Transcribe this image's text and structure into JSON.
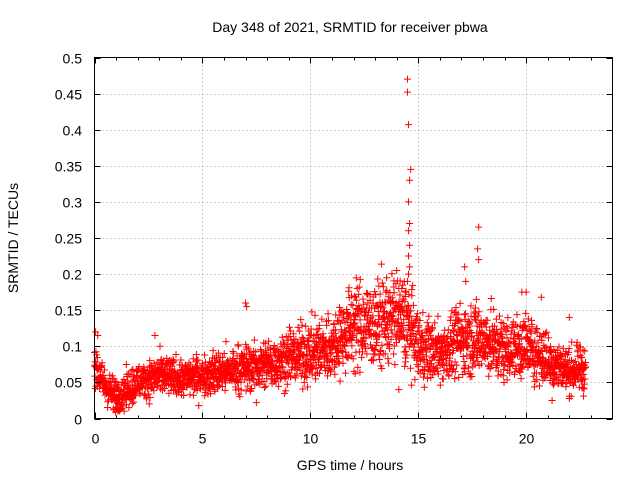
{
  "chart_data": {
    "type": "scatter",
    "title": "Day 348 of 2021, SRMTID for receiver pbwa",
    "xlabel": "GPS time / hours",
    "ylabel": "SRMTID / TECUs",
    "xlim": [
      0,
      24
    ],
    "ylim": [
      0,
      0.5
    ],
    "x_ticks": [
      0,
      5,
      10,
      15,
      20
    ],
    "x_tick_labels": [
      "0",
      "5",
      "10",
      "15",
      "20"
    ],
    "y_ticks": [
      0,
      0.05,
      0.1,
      0.15,
      0.2,
      0.25,
      0.3,
      0.35,
      0.4,
      0.45,
      0.5
    ],
    "y_tick_labels": [
      "0",
      "0.05",
      "0.1",
      "0.15",
      "0.2",
      "0.25",
      "0.3",
      "0.35",
      "0.4",
      "0.45",
      "0.5"
    ],
    "grid": true,
    "marker": "+",
    "marker_color": "#ff0000",
    "data_start_hours": 0.0,
    "data_end_hours": 22.75,
    "trend": {
      "x": [
        0,
        0.5,
        1,
        1.5,
        2,
        3,
        4,
        5,
        6,
        7,
        8,
        9,
        10,
        11,
        12,
        13,
        14,
        14.5,
        15,
        16,
        17,
        18,
        19,
        20,
        21,
        22,
        22.75
      ],
      "y": [
        0.07,
        0.045,
        0.03,
        0.04,
        0.05,
        0.06,
        0.055,
        0.06,
        0.065,
        0.07,
        0.075,
        0.085,
        0.09,
        0.1,
        0.13,
        0.13,
        0.14,
        0.13,
        0.1,
        0.09,
        0.11,
        0.11,
        0.095,
        0.1,
        0.08,
        0.065,
        0.07
      ]
    },
    "highlighted_points": [
      {
        "x": 14.5,
        "y": 0.47
      },
      {
        "x": 14.5,
        "y": 0.452
      },
      {
        "x": 14.55,
        "y": 0.407
      },
      {
        "x": 14.65,
        "y": 0.345
      },
      {
        "x": 14.6,
        "y": 0.33
      },
      {
        "x": 14.55,
        "y": 0.3
      },
      {
        "x": 14.6,
        "y": 0.27
      },
      {
        "x": 14.55,
        "y": 0.26
      },
      {
        "x": 14.6,
        "y": 0.24
      },
      {
        "x": 14.55,
        "y": 0.225
      },
      {
        "x": 14.6,
        "y": 0.21
      },
      {
        "x": 14.55,
        "y": 0.2
      },
      {
        "x": 14.5,
        "y": 0.19
      },
      {
        "x": 14.4,
        "y": 0.175
      },
      {
        "x": 14.7,
        "y": 0.17
      },
      {
        "x": 14.0,
        "y": 0.205
      },
      {
        "x": 14.1,
        "y": 0.18
      },
      {
        "x": 17.8,
        "y": 0.265
      },
      {
        "x": 17.75,
        "y": 0.235
      },
      {
        "x": 17.8,
        "y": 0.22
      },
      {
        "x": 17.15,
        "y": 0.21
      },
      {
        "x": 17.2,
        "y": 0.19
      },
      {
        "x": 7.0,
        "y": 0.16
      },
      {
        "x": 7.05,
        "y": 0.155
      },
      {
        "x": 13.5,
        "y": 0.175
      },
      {
        "x": 19.8,
        "y": 0.175
      },
      {
        "x": 20.0,
        "y": 0.175
      },
      {
        "x": 20.7,
        "y": 0.168
      },
      {
        "x": 0.05,
        "y": 0.12
      },
      {
        "x": 0.15,
        "y": 0.115
      },
      {
        "x": 2.8,
        "y": 0.115
      },
      {
        "x": 22.0,
        "y": 0.14
      },
      {
        "x": 0.9,
        "y": 0.012
      },
      {
        "x": 1.0,
        "y": 0.015
      },
      {
        "x": 7.5,
        "y": 0.022
      },
      {
        "x": 14.1,
        "y": 0.04
      },
      {
        "x": 21.2,
        "y": 0.025
      }
    ],
    "scatter_note": "approximately 2700 points scattered about the trend"
  }
}
